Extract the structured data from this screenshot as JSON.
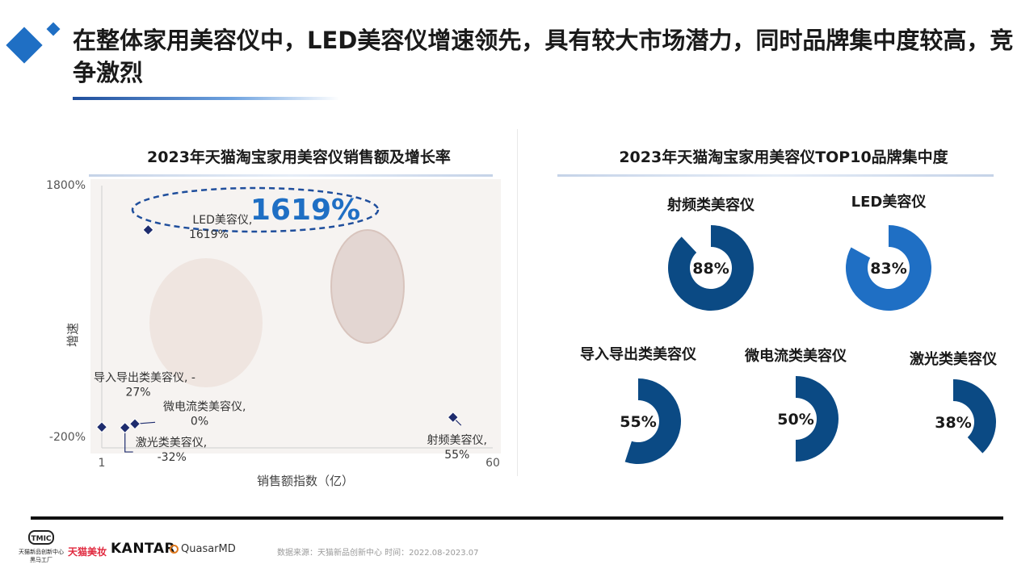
{
  "title": "在整体家用美容仪中，LED美容仪增速领先，具有较大市场潜力，同时品牌集中度较高，竞争激烈",
  "colors": {
    "accent_dark": "#0b4a84",
    "accent_mid": "#1f6fc4",
    "accent_light": "#ffffff",
    "marker": "#1e2c6e"
  },
  "left_panel": {
    "heading": "2023年天猫淘宝家用美容仪销售额及增长率",
    "highlight_value": "1619%"
  },
  "right_panel": {
    "heading": "2023年天猫淘宝家用美容仪TOP10品牌集中度"
  },
  "chart_data": [
    {
      "type": "scatter",
      "title": "2023年天猫淘宝家用美容仪销售额及增长率",
      "xlabel": "销售额指数（亿）",
      "ylabel": "增速",
      "xlim": [
        1,
        60
      ],
      "ylim": [
        -200,
        1800
      ],
      "x_ticks": [
        "1",
        "60"
      ],
      "y_ticks": [
        "1800%",
        "-200%"
      ],
      "points": [
        {
          "name": "LED美容仪",
          "label_line1": "LED美容仪,",
          "label_line2": "1619%",
          "x": 8,
          "y": 1619
        },
        {
          "name": "导入导出类美容仪",
          "label_line1": "导入导出类美容仪, -",
          "label_line2": "27%",
          "x": 1,
          "y": -27
        },
        {
          "name": "微电流类美容仪",
          "label_line1": "微电流类美容仪,",
          "label_line2": "0%",
          "x": 6,
          "y": 0
        },
        {
          "name": "激光类美容仪",
          "label_line1": "激光类美容仪,",
          "label_line2": "-32%",
          "x": 4.5,
          "y": -32
        },
        {
          "name": "射频美容仪",
          "label_line1": "射频美容仪,",
          "label_line2": "55%",
          "x": 54,
          "y": 55
        }
      ]
    },
    {
      "type": "pie",
      "title": "2023年天猫淘宝家用美容仪TOP10品牌集中度",
      "donuts": [
        {
          "label": "射频类美容仪",
          "value": 88,
          "display": "88%"
        },
        {
          "label": "LED美容仪",
          "value": 83,
          "display": "83%"
        },
        {
          "label": "导入导出类美容仪",
          "value": 55,
          "display": "55%"
        },
        {
          "label": "微电流类美容仪",
          "value": 50,
          "display": "50%"
        },
        {
          "label": "激光类美容仪",
          "value": 38,
          "display": "38%"
        }
      ]
    }
  ],
  "footer": {
    "source": "数据来源：天猫新品创新中心 时间：2022.08-2023.07",
    "brand_tmic": "TMIC",
    "brand_tmic_sub1": "天猫新品创新中心",
    "brand_tmic_sub2": "黑马工厂",
    "brand_tmall": "天猫美妆",
    "brand_kantar": "KANTAR",
    "brand_quasar": "QuasarMD"
  }
}
